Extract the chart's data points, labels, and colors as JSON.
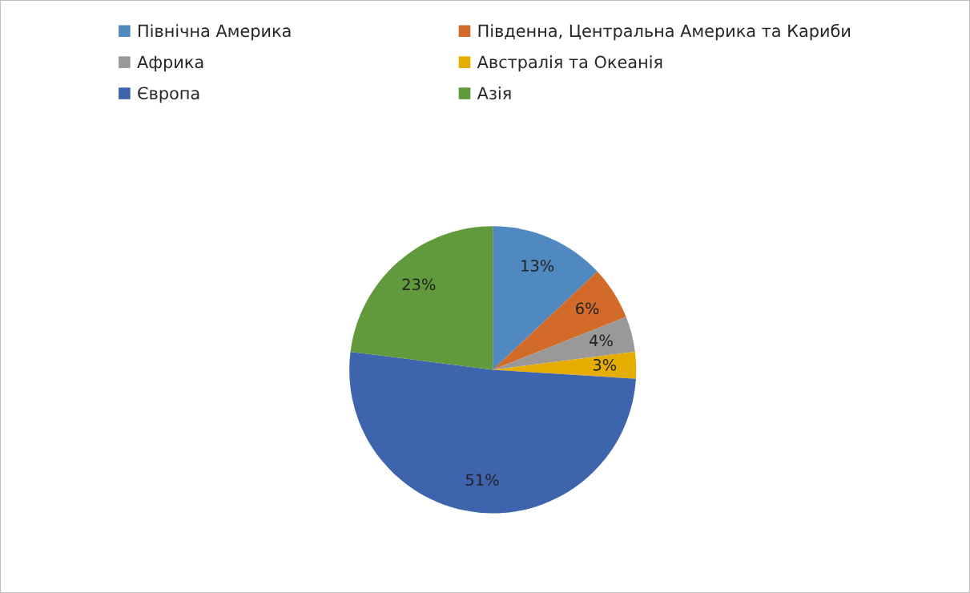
{
  "chart_data": {
    "type": "pie",
    "categories": [
      "Північна Америка",
      "Південна, Центральна Америка та Кариби",
      "Африка",
      "Австралія та Океанія",
      "Європа",
      "Азія"
    ],
    "values": [
      13,
      6,
      4,
      3,
      51,
      23
    ],
    "value_labels": [
      "13%",
      "6%",
      "4%",
      "3%",
      "51%",
      "23%"
    ],
    "colors": [
      "#5089c0",
      "#d26b29",
      "#999999",
      "#e5ad00",
      "#3d64ad",
      "#619a3c"
    ],
    "legend": "top"
  }
}
